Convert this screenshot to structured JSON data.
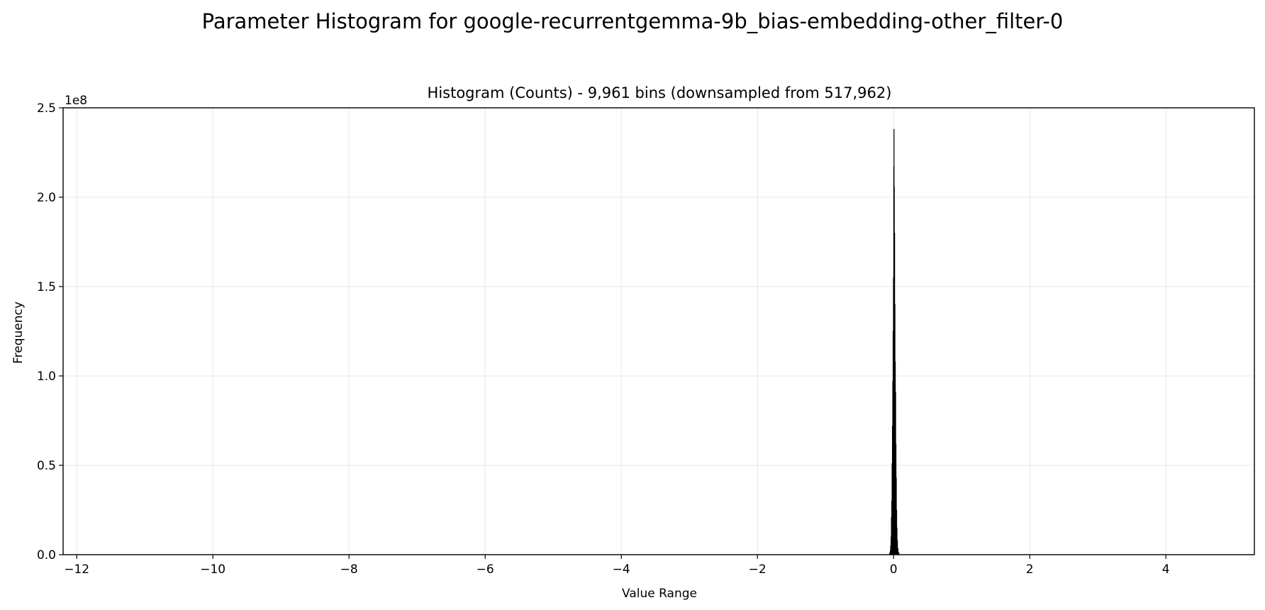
{
  "chart_data": {
    "type": "bar",
    "title": "Parameter Histogram for google-recurrentgemma-9b_bias-embedding-other_filter-0",
    "subtitle": "Histogram (Counts) - 9,961 bins (downsampled from 517,962)",
    "xlabel": "Value Range",
    "ylabel": "Frequency",
    "y_offset_label": "1e8",
    "y_scale": 100000000,
    "xlim": [
      -12.2,
      5.3
    ],
    "ylim": [
      0,
      250000000
    ],
    "x_ticks": [
      -12,
      -10,
      -8,
      -6,
      -4,
      -2,
      0,
      2,
      4
    ],
    "x_tick_labels": [
      "−12",
      "−10",
      "−8",
      "−6",
      "−4",
      "−2",
      "0",
      "2",
      "4"
    ],
    "y_ticks": [
      0,
      50000000,
      100000000,
      150000000,
      200000000,
      250000000
    ],
    "y_tick_labels": [
      "0.0",
      "0.5",
      "1.0",
      "1.5",
      "2.0",
      "2.5"
    ],
    "grid": true,
    "bar_color": "#1f1a5c",
    "edge_color": "#000000",
    "bins": [
      {
        "x": -0.07,
        "y": 0
      },
      {
        "x": -0.06,
        "y": 1000000
      },
      {
        "x": -0.05,
        "y": 2500000
      },
      {
        "x": -0.045,
        "y": 5000000
      },
      {
        "x": -0.04,
        "y": 10000000
      },
      {
        "x": -0.035,
        "y": 21000000
      },
      {
        "x": -0.03,
        "y": 30000000
      },
      {
        "x": -0.025,
        "y": 51000000
      },
      {
        "x": -0.02,
        "y": 72000000
      },
      {
        "x": -0.015,
        "y": 97000000
      },
      {
        "x": -0.01,
        "y": 125000000
      },
      {
        "x": -0.005,
        "y": 155000000
      },
      {
        "x": 0.0,
        "y": 217000000
      },
      {
        "x": 0.003,
        "y": 238000000
      },
      {
        "x": 0.007,
        "y": 206000000
      },
      {
        "x": 0.012,
        "y": 180000000
      },
      {
        "x": 0.017,
        "y": 140000000
      },
      {
        "x": 0.022,
        "y": 108000000
      },
      {
        "x": 0.027,
        "y": 91000000
      },
      {
        "x": 0.032,
        "y": 62000000
      },
      {
        "x": 0.037,
        "y": 43000000
      },
      {
        "x": 0.042,
        "y": 25000000
      },
      {
        "x": 0.047,
        "y": 15000000
      },
      {
        "x": 0.052,
        "y": 8000000
      },
      {
        "x": 0.06,
        "y": 3500000
      },
      {
        "x": 0.068,
        "y": 1500000
      },
      {
        "x": 0.076,
        "y": 500000
      },
      {
        "x": 0.085,
        "y": 0
      }
    ]
  }
}
